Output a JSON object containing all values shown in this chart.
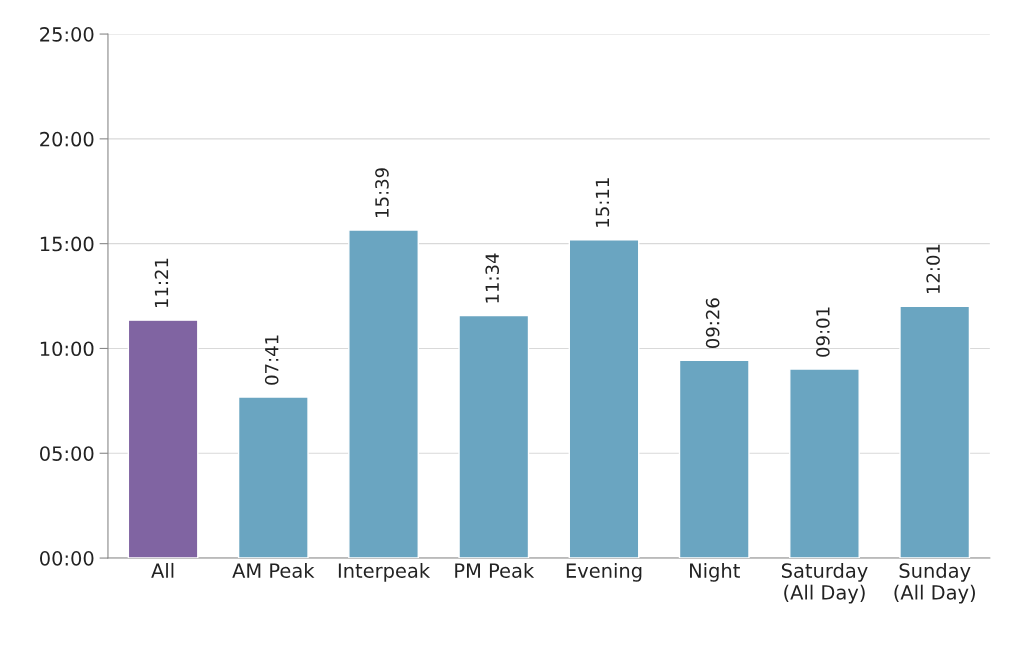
{
  "chart_data": {
    "type": "bar",
    "categories": [
      "All",
      "AM Peak",
      "Interpeak",
      "PM Peak",
      "Evening",
      "Night",
      "Saturday\n(All Day)",
      "Sunday\n(All Day)"
    ],
    "values": [
      11.35,
      7.6833,
      15.65,
      11.5667,
      15.1833,
      9.4333,
      9.0167,
      12.0167
    ],
    "value_labels": [
      "11:21",
      "07:41",
      "15:39",
      "11:34",
      "15:11",
      "09:26",
      "09:01",
      "12:01"
    ],
    "colors": [
      "#8064a2",
      "#6aa5c1",
      "#6aa5c1",
      "#6aa5c1",
      "#6aa5c1",
      "#6aa5c1",
      "#6aa5c1",
      "#6aa5c1"
    ],
    "ylim": [
      0,
      25
    ],
    "yticks": [
      {
        "value": 0,
        "label": "00:00"
      },
      {
        "value": 5,
        "label": "05:00"
      },
      {
        "value": 10,
        "label": "10:00"
      },
      {
        "value": 15,
        "label": "15:00"
      },
      {
        "value": 20,
        "label": "20:00"
      },
      {
        "value": 25,
        "label": "25:00"
      }
    ],
    "grid": "y"
  }
}
